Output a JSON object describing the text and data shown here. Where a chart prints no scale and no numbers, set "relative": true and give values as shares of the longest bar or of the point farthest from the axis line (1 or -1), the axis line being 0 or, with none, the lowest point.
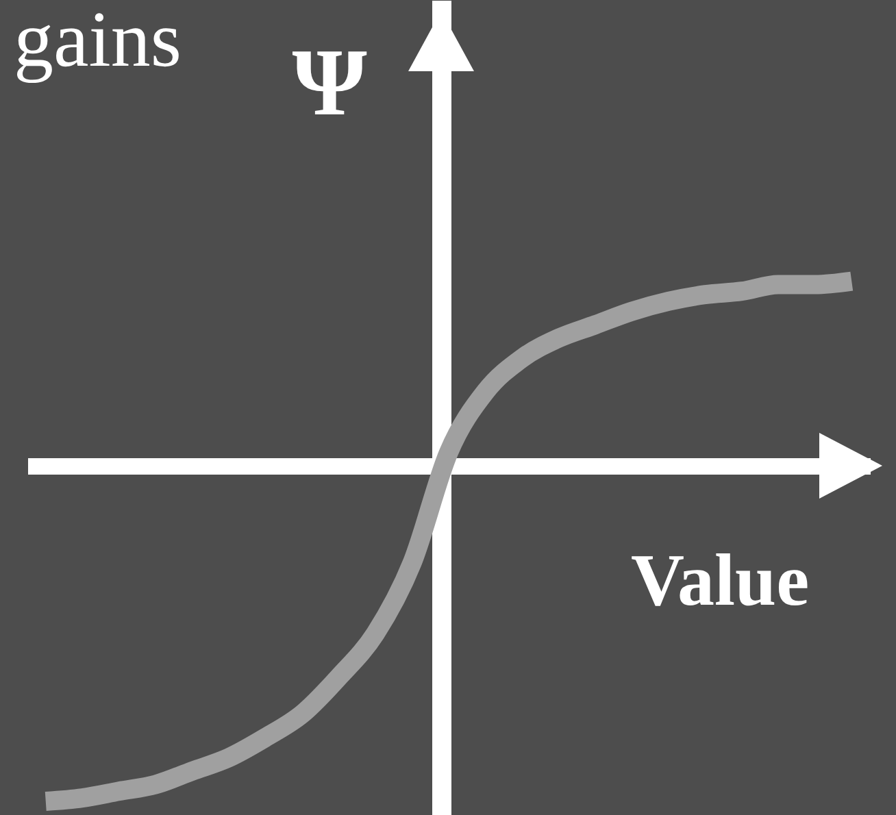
{
  "chart_data": {
    "type": "line",
    "relative": true,
    "xlabel": "Value",
    "ylabel": "Ψ",
    "annotations": [
      "gains"
    ],
    "line_style": "solid",
    "categories": [
      null,
      null,
      null,
      null,
      null,
      null,
      null,
      null,
      null,
      null,
      null,
      null,
      null,
      null,
      null,
      null,
      null,
      null,
      null,
      null,
      null,
      null,
      null
    ],
    "series": [
      {
        "color": "#a0a0a0",
        "values": [
          -1,
          -0.99,
          -0.97,
          -0.95,
          -0.91,
          -0.87,
          -0.81,
          -0.74,
          -0.63,
          -0.5,
          -0.29,
          0.04,
          0.22,
          0.32,
          0.38,
          0.42,
          0.46,
          0.49,
          0.51,
          0.52,
          0.54,
          0.54,
          0.55
        ]
      }
    ]
  }
}
